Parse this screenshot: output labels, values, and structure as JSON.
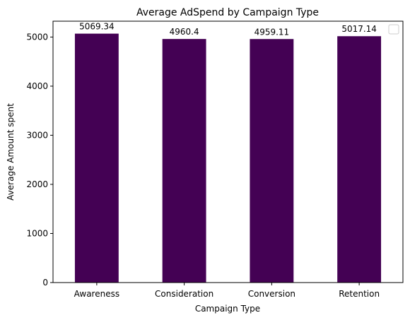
{
  "chart_data": {
    "type": "bar",
    "title": "Average AdSpend by Campaign Type",
    "xlabel": "Campaign Type",
    "ylabel": "Average Amount spent",
    "categories": [
      "Awareness",
      "Consideration",
      "Conversion",
      "Retention"
    ],
    "values": [
      5069.34,
      4960.4,
      4959.11,
      5017.14
    ],
    "data_labels": [
      "5069.34",
      "4960.4",
      "4959.11",
      "5017.14"
    ],
    "y_ticks": [
      0,
      1000,
      2000,
      3000,
      4000,
      5000
    ],
    "ylim": [
      0,
      5322.81
    ],
    "grid": false,
    "legend": "top-right",
    "colors": {
      "bar": "#440154"
    }
  }
}
